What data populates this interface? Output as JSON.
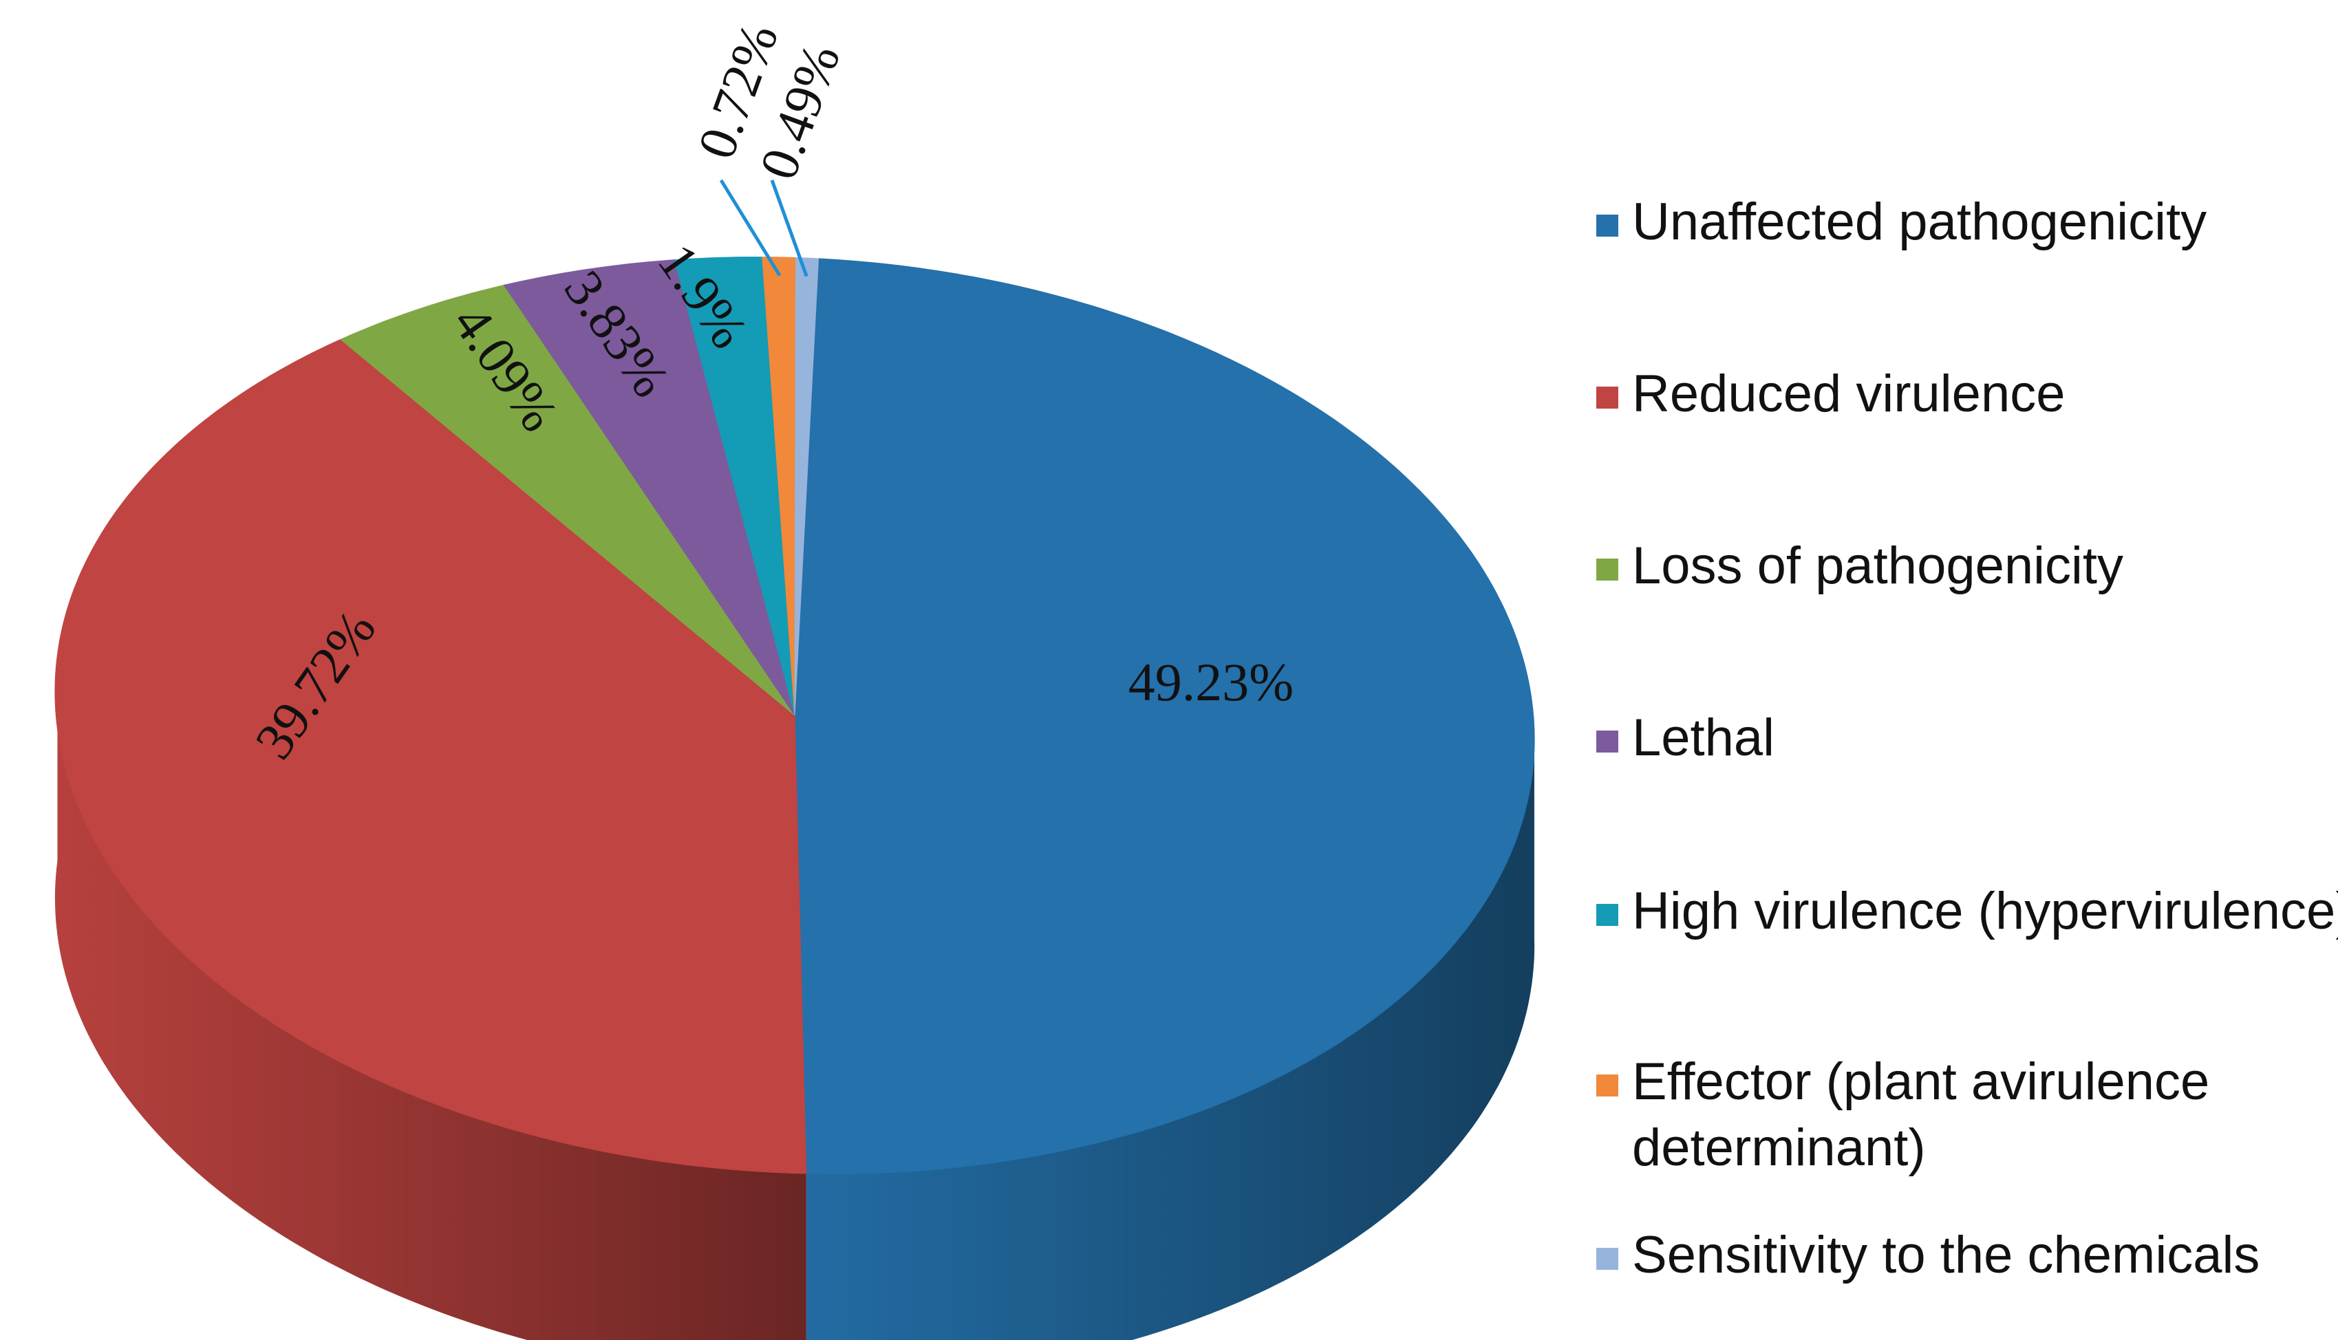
{
  "chart_data": {
    "type": "pie",
    "style": "3d",
    "start_angle": "12 o'clock, clockwise",
    "legend_position": "right",
    "series": [
      {
        "name": "Unaffected pathogenicity",
        "value": 49.23,
        "label": "49.23%",
        "color": "#2471AB"
      },
      {
        "name": "Reduced virulence",
        "value": 39.72,
        "label": "39.72%",
        "color": "#C04441"
      },
      {
        "name": "Loss of pathogenicity",
        "value": 4.09,
        "label": "4.09%",
        "color": "#7FA845"
      },
      {
        "name": "Lethal",
        "value": 3.83,
        "label": "3.83%",
        "color": "#7D5A9C"
      },
      {
        "name": "High virulence (hypervirulence)",
        "value": 1.9,
        "label": "1.9%",
        "color": "#149BB6"
      },
      {
        "name": "Effector (plant avirulence determinant)",
        "value": 0.72,
        "label": "0.72%",
        "color": "#F1883A"
      },
      {
        "name": "Sensitivity to the chemicals",
        "value": 0.49,
        "label": "0.49%",
        "color": "#97B4DC"
      }
    ],
    "legend_lines": [
      [
        "Unaffected pathogenicity"
      ],
      [
        "Reduced virulence"
      ],
      [
        "Loss of pathogenicity"
      ],
      [
        "Lethal"
      ],
      [
        "High virulence (hypervirulence)"
      ],
      [
        "Effector (plant avirulence",
        "determinant)"
      ],
      [
        "Sensitivity to the chemicals"
      ]
    ],
    "leader_line_color": "#1F8FD6"
  }
}
